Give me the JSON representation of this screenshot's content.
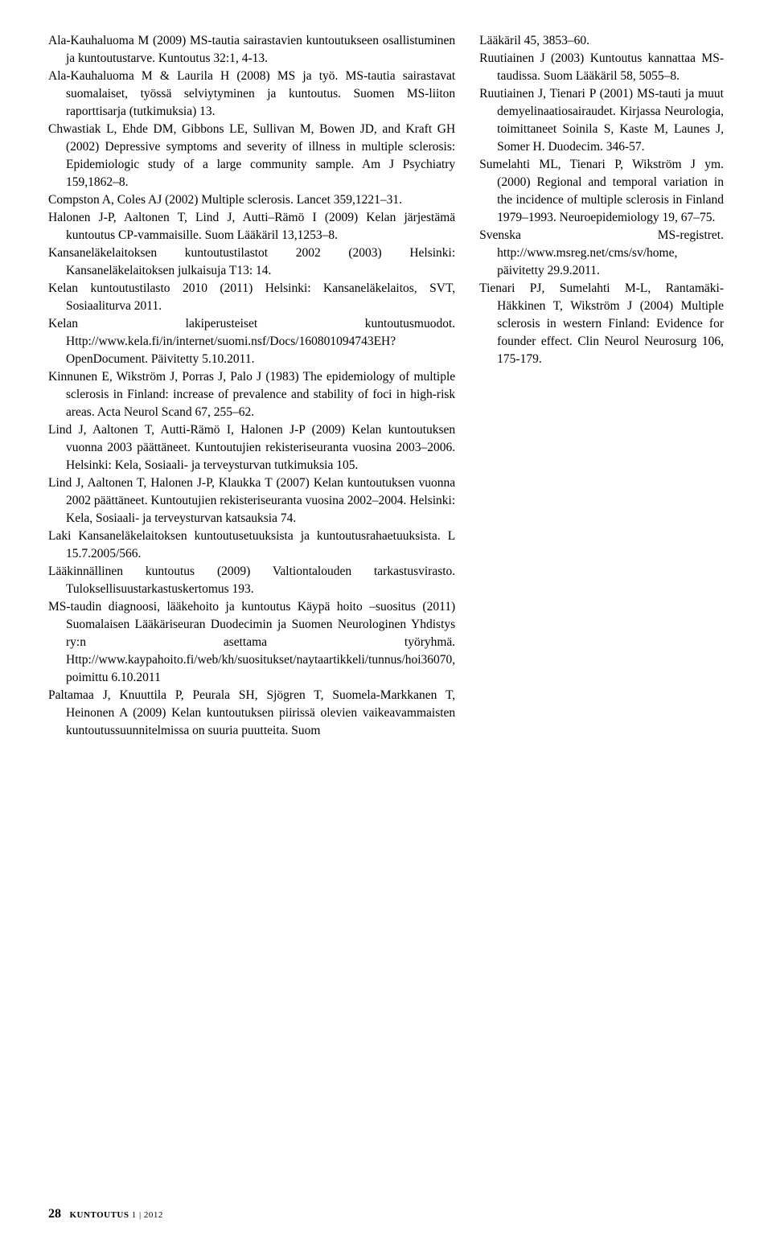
{
  "leftRefs": [
    "Ala-Kauhaluoma M (2009) MS-tautia sairastavien kuntoutukseen osallistuminen ja kuntoutustarve. Kuntoutus 32:1, 4-13.",
    "Ala-Kauhaluoma M & Laurila H (2008) MS ja työ. MS-tautia sairastavat suomalaiset, työssä selviytyminen ja kuntoutus. Suomen MS-liiton raporttisarja (tutkimuksia) 13.",
    "Chwastiak L, Ehde DM, Gibbons LE, Sullivan M, Bowen JD, and Kraft GH (2002) Depressive symptoms and severity of illness in multiple sclerosis: Epidemiologic study of a large community sample. Am J Psychiatry 159,1862–8.",
    "Compston A, Coles AJ (2002) Multiple sclerosis. Lancet 359,1221–31.",
    "Halonen J-P, Aaltonen T, Lind J, Autti–Rämö I (2009) Kelan järjestämä kuntoutus CP-vammaisille. Suom Lääkäril 13,1253–8.",
    "Kansaneläkelaitoksen kuntoutustilastot 2002 (2003) Helsinki: Kansaneläkelaitoksen julkaisuja T13: 14.",
    "Kelan kuntoutustilasto 2010 (2011) Helsinki: Kansaneläkelaitos, SVT, Sosiaaliturva 2011.",
    "Kelan lakiperusteiset kuntoutusmuodot. Http://www.kela.fi/in/internet/suomi.nsf/Docs/160801094743EH?OpenDocument. Päivitetty 5.10.2011.",
    "Kinnunen E, Wikström J, Porras J, Palo J (1983) The epidemiology of multiple sclerosis in Finland: increase of prevalence and stability of foci in high-risk areas. Acta Neurol Scand 67, 255–62.",
    "Lind J, Aaltonen T, Autti-Rämö I, Halonen J-P (2009) Kelan kuntoutuksen vuonna 2003 päättäneet. Kuntoutujien rekisteriseuranta vuosina 2003–2006. Helsinki: Kela, Sosiaali- ja terveysturvan tutkimuksia 105.",
    "Lind J, Aaltonen T, Halonen J-P, Klaukka T (2007) Kelan kuntoutuksen vuonna 2002 päättäneet. Kuntoutujien rekisteriseuranta vuosina 2002–2004. Helsinki: Kela, Sosiaali- ja terveysturvan katsauksia 74.",
    "Laki Kansaneläkelaitoksen kuntoutusetuuksista ja kuntoutusrahaetuuksista. L 15.7.2005/566.",
    "Lääkinnällinen kuntoutus (2009) Valtiontalouden tarkastusvirasto. Tuloksellisuustarkastuskertomus 193.",
    "MS-taudin diagnoosi, lääkehoito ja kuntoutus Käypä hoito –suositus (2011) Suomalaisen Lääkäriseuran Duodecimin ja Suomen Neurologinen Yhdistys ry:n asettama työryhmä. Http://www.kaypahoito.fi/web/kh/suositukset/naytaartikkeli/tunnus/hoi36070, poimittu 6.10.2011",
    "Paltamaa J, Knuuttila P, Peurala SH, Sjögren T, Suomela-Markkanen T, Heinonen A (2009) Kelan kuntoutuksen piirissä olevien vaikeavammaisten kuntoutussuunnitelmissa on suuria puutteita. Suom"
  ],
  "rightRefs": [
    "Lääkäril 45, 3853–60.",
    "Ruutiainen J (2003) Kuntoutus kannattaa MS-taudissa. Suom Lääkäril 58, 5055–8.",
    "Ruutiainen J, Tienari P (2001) MS-tauti ja muut demyelinaatiosairaudet. Kirjassa Neurologia, toimittaneet Soinila S, Kaste M, Launes J, Somer H. Duodecim. 346-57.",
    "Sumelahti ML, Tienari P, Wikström J ym. (2000) Regional and temporal variation in the incidence of multiple sclerosis in Finland 1979–1993. Neuroepidemiology 19, 67–75.",
    "Svenska MS-registret. http://www.msreg.net/cms/sv/home, päivitetty 29.9.2011.",
    "Tienari PJ, Sumelahti M-L, Rantamäki-Häkkinen T, Wikström J (2004) Multiple sclerosis in western Finland: Evidence for founder effect. Clin Neurol Neurosurg 106, 175-179."
  ],
  "footer": {
    "page": "28",
    "label": "KUNTOUTUS",
    "issue": "1 | 2012"
  }
}
